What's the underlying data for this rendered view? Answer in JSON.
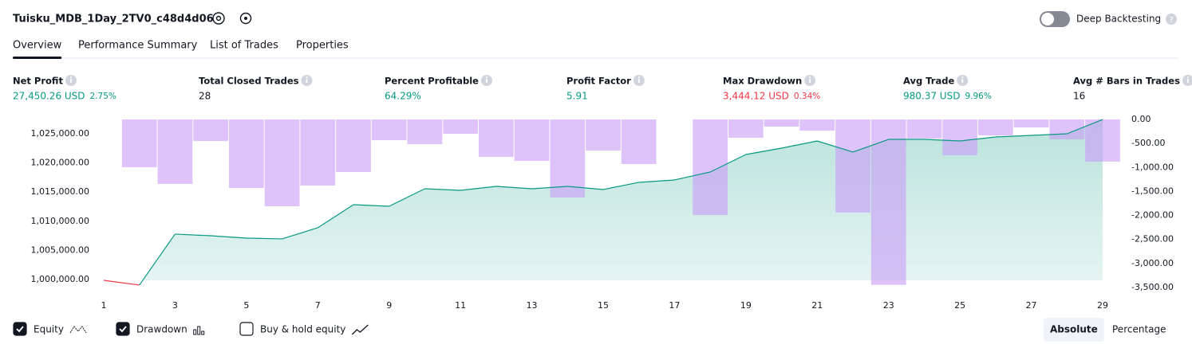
{
  "header": {
    "title": "Tuisku_MDB_1Day_2TV0_c48d4d06",
    "toggle_label": "Deep Backtesting"
  },
  "tabs": [
    "Overview",
    "Performance Summary",
    "List of Trades",
    "Properties"
  ],
  "active_tab": 0,
  "stats": [
    {
      "label": "Net Profit",
      "value": "27,450.26 USD",
      "sub": "2.75%",
      "color": "#089981"
    },
    {
      "label": "Total Closed Trades",
      "value": "28",
      "color": "#131722"
    },
    {
      "label": "Percent Profitable",
      "value": "64.29%",
      "color": "#089981"
    },
    {
      "label": "Profit Factor",
      "value": "5.91",
      "color": "#089981"
    },
    {
      "label": "Max Drawdown",
      "value": "3,444.12 USD",
      "sub": "0.34%",
      "color": "#f23645"
    },
    {
      "label": "Avg Trade",
      "value": "980.37 USD",
      "sub": "9.96%",
      "color": "#089981"
    },
    {
      "label": "Avg # Bars in Trades",
      "value": "16",
      "color": "#131722"
    }
  ],
  "chart_data": {
    "type": "line",
    "x": [
      1,
      2,
      3,
      4,
      5,
      6,
      7,
      8,
      9,
      10,
      11,
      12,
      13,
      14,
      15,
      16,
      17,
      18,
      19,
      20,
      21,
      22,
      23,
      24,
      25,
      26,
      27,
      28,
      29
    ],
    "series": [
      {
        "name": "Equity",
        "color": "#089981",
        "loss_color": "#f23645",
        "values": [
          999860,
          999050,
          1007790,
          1007510,
          1007100,
          1006970,
          1008880,
          1012840,
          1012570,
          1015570,
          1015300,
          1015980,
          1015570,
          1015980,
          1015440,
          1016670,
          1017080,
          1018440,
          1021450,
          1022540,
          1023770,
          1021860,
          1024040,
          1024040,
          1023770,
          1024450,
          1024730,
          1025000,
          1027450
        ]
      },
      {
        "name": "Drawdown",
        "type": "bar",
        "axis": "y2",
        "color": "#c89bf6",
        "values": [
          0,
          -995,
          -1343,
          -448,
          -1426,
          -1808,
          -1376,
          -1095,
          -431,
          -514,
          -298,
          -779,
          -862,
          -1625,
          -647,
          -929,
          0,
          -1990,
          -381,
          -149,
          -232,
          -1940,
          -3444.12,
          -398,
          -746,
          -332,
          -166,
          -415,
          -879
        ]
      }
    ],
    "xlim": [
      1,
      29
    ],
    "xticks": [
      1,
      3,
      5,
      7,
      9,
      11,
      13,
      15,
      17,
      19,
      21,
      23,
      25,
      27,
      29
    ],
    "ylim": [
      998630,
      1027460
    ],
    "yticks": [
      {
        "value": 1000000,
        "label": "1,000,000.00"
      },
      {
        "value": 1005000,
        "label": "1,005,000.00"
      },
      {
        "value": 1010000,
        "label": "1,010,000.00"
      },
      {
        "value": 1015000,
        "label": "1,015,000.00"
      },
      {
        "value": 1020000,
        "label": "1,020,000.00"
      },
      {
        "value": 1025000,
        "label": "1,025,000.00"
      }
    ],
    "y2lim": [
      -3500,
      0
    ],
    "y2ticks": [
      {
        "value": 0,
        "label": "0.00"
      },
      {
        "value": -500,
        "label": "-500.00"
      },
      {
        "value": -1000,
        "label": "-1,000.00"
      },
      {
        "value": -1500,
        "label": "-1,500.00"
      },
      {
        "value": -2000,
        "label": "-2,000.00"
      },
      {
        "value": -2500,
        "label": "-2,500.00"
      },
      {
        "value": -3000,
        "label": "-3,000.00"
      },
      {
        "value": -3500,
        "label": "-3,500.00"
      }
    ],
    "series_checked": [
      true,
      true
    ]
  },
  "buy_hold": {
    "label": "Buy & hold equity",
    "checked": false
  },
  "scale_buttons": [
    "Absolute",
    "Percentage"
  ],
  "active_scale": 0
}
